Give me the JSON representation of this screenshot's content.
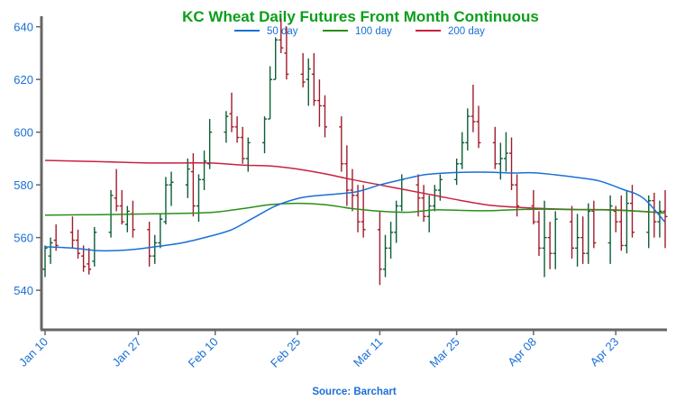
{
  "chart_data": {
    "type": "line",
    "title": "KC Wheat Daily Futures Front Month Continuous",
    "source": "Source: Barchart",
    "ylim": [
      525,
      644
    ],
    "y_ticks": [
      540,
      560,
      580,
      600,
      620,
      640
    ],
    "x_start": "2024-01-10",
    "x_end": "2024-05-02",
    "x_ticks": [
      {
        "date": "2024-01-10",
        "label": "Jan 10"
      },
      {
        "date": "2024-01-27",
        "label": "Jan 27"
      },
      {
        "date": "2024-02-10",
        "label": "Feb 10"
      },
      {
        "date": "2024-02-25",
        "label": "Feb 25"
      },
      {
        "date": "2024-03-11",
        "label": "Mar 11"
      },
      {
        "date": "2024-03-25",
        "label": "Mar 25"
      },
      {
        "date": "2024-04-08",
        "label": "Apr 08"
      },
      {
        "date": "2024-04-23",
        "label": "Apr 23"
      }
    ],
    "legend": {
      "placement": "top"
    },
    "grid": false,
    "colors": {
      "title": "#0a9e1a",
      "axis_text": "#1a6fd6",
      "axis_line": "#666666",
      "up_bar": "#0b5e36",
      "down_bar": "#a01c2a"
    },
    "series": [
      {
        "name": "50 day",
        "color": "#1a6fd6",
        "x": [
          "2024-01-10",
          "2024-01-15",
          "2024-01-20",
          "2024-01-25",
          "2024-01-30",
          "2024-02-04",
          "2024-02-09",
          "2024-02-13",
          "2024-02-17",
          "2024-02-21",
          "2024-02-25",
          "2024-02-28",
          "2024-03-03",
          "2024-03-07",
          "2024-03-11",
          "2024-03-15",
          "2024-03-19",
          "2024-03-23",
          "2024-03-27",
          "2024-03-31",
          "2024-04-04",
          "2024-04-08",
          "2024-04-12",
          "2024-04-16",
          "2024-04-20",
          "2024-04-24",
          "2024-04-28",
          "2024-05-02"
        ],
        "values": [
          556.5,
          556,
          555,
          555.3,
          556.5,
          558,
          560.5,
          563,
          567.5,
          572,
          574.8,
          575.8,
          576.5,
          577.5,
          580,
          582,
          583.8,
          584.5,
          584.8,
          584.8,
          584.5,
          584.6,
          583.8,
          582.8,
          581.5,
          578.5,
          575,
          565.8
        ]
      },
      {
        "name": "100 day",
        "color": "#2a8f1a",
        "x": [
          "2024-01-10",
          "2024-01-20",
          "2024-01-30",
          "2024-02-09",
          "2024-02-15",
          "2024-02-20",
          "2024-02-25",
          "2024-03-01",
          "2024-03-06",
          "2024-03-11",
          "2024-03-16",
          "2024-03-21",
          "2024-03-26",
          "2024-03-31",
          "2024-04-05",
          "2024-04-10",
          "2024-04-15",
          "2024-04-20",
          "2024-04-25",
          "2024-05-02"
        ],
        "values": [
          568.5,
          568.7,
          569,
          569.5,
          571,
          572.5,
          573,
          572.5,
          571,
          570,
          569.6,
          570.5,
          570.3,
          570.2,
          570.6,
          570.8,
          570.6,
          570.5,
          570.2,
          569.4
        ]
      },
      {
        "name": "200 day",
        "color": "#c8223f",
        "x": [
          "2024-01-10",
          "2024-01-20",
          "2024-01-30",
          "2024-02-09",
          "2024-02-15",
          "2024-02-20",
          "2024-02-25",
          "2024-03-01",
          "2024-03-06",
          "2024-03-11",
          "2024-03-16",
          "2024-03-21",
          "2024-03-26",
          "2024-03-31",
          "2024-04-05",
          "2024-04-10",
          "2024-04-15",
          "2024-04-20",
          "2024-04-25",
          "2024-05-02"
        ],
        "values": [
          589.3,
          588.8,
          588.3,
          588.3,
          587.5,
          587.2,
          586,
          584.2,
          582,
          580,
          578,
          576,
          574,
          572.3,
          571.5,
          571,
          570.7,
          570.6,
          570.3,
          569.3
        ]
      }
    ],
    "ohlc_dates": [
      "2024-01-10",
      "2024-01-11",
      "2024-01-12",
      "2024-01-15",
      "2024-01-16",
      "2024-01-17",
      "2024-01-18",
      "2024-01-19",
      "2024-01-22",
      "2024-01-23",
      "2024-01-24",
      "2024-01-25",
      "2024-01-26",
      "2024-01-29",
      "2024-01-30",
      "2024-01-31",
      "2024-02-01",
      "2024-02-02",
      "2024-02-05",
      "2024-02-06",
      "2024-02-07",
      "2024-02-08",
      "2024-02-09",
      "2024-02-12",
      "2024-02-13",
      "2024-02-14",
      "2024-02-15",
      "2024-02-16",
      "2024-02-19",
      "2024-02-20",
      "2024-02-21",
      "2024-02-22",
      "2024-02-23",
      "2024-02-26",
      "2024-02-27",
      "2024-02-28",
      "2024-02-29",
      "2024-03-01",
      "2024-03-04",
      "2024-03-05",
      "2024-03-06",
      "2024-03-07",
      "2024-03-08",
      "2024-03-11",
      "2024-03-12",
      "2024-03-13",
      "2024-03-14",
      "2024-03-15",
      "2024-03-18",
      "2024-03-19",
      "2024-03-20",
      "2024-03-21",
      "2024-03-22",
      "2024-03-25",
      "2024-03-26",
      "2024-03-27",
      "2024-03-28",
      "2024-03-29",
      "2024-04-01",
      "2024-04-02",
      "2024-04-03",
      "2024-04-04",
      "2024-04-05",
      "2024-04-08",
      "2024-04-09",
      "2024-04-10",
      "2024-04-11",
      "2024-04-12",
      "2024-04-15",
      "2024-04-16",
      "2024-04-17",
      "2024-04-18",
      "2024-04-19",
      "2024-04-22",
      "2024-04-23",
      "2024-04-24",
      "2024-04-25",
      "2024-04-26",
      "2024-04-29",
      "2024-04-30",
      "2024-05-01",
      "2024-05-02"
    ],
    "ohlc": [
      [
        548,
        557,
        545,
        556
      ],
      [
        553,
        560,
        550,
        558
      ],
      [
        559,
        565,
        555,
        557
      ],
      [
        562,
        568,
        556,
        559
      ],
      [
        559,
        563,
        552,
        554
      ],
      [
        553,
        557,
        547,
        549
      ],
      [
        550,
        556,
        546,
        548
      ],
      [
        551,
        564,
        549,
        562
      ],
      [
        562,
        578,
        560,
        576
      ],
      [
        575,
        586,
        570,
        572
      ],
      [
        572,
        578,
        565,
        566
      ],
      [
        565,
        572,
        562,
        570
      ],
      [
        569,
        574,
        560,
        563
      ],
      [
        563,
        566,
        549,
        553
      ],
      [
        553,
        561,
        550,
        558
      ],
      [
        558,
        569,
        556,
        567
      ],
      [
        566,
        583,
        565,
        580
      ],
      [
        580,
        585,
        572,
        581
      ],
      [
        580,
        590,
        575,
        586
      ],
      [
        585,
        592,
        568,
        572
      ],
      [
        572,
        584,
        566,
        582
      ],
      [
        582,
        593,
        578,
        589
      ],
      [
        588,
        605,
        586,
        600
      ],
      [
        600,
        608,
        596,
        606
      ],
      [
        607,
        615,
        600,
        602
      ],
      [
        602,
        606,
        596,
        598
      ],
      [
        598,
        602,
        588,
        590
      ],
      [
        590,
        598,
        585,
        596
      ],
      [
        596,
        606,
        592,
        605
      ],
      [
        605,
        625,
        605,
        620
      ],
      [
        620,
        636,
        620,
        635
      ],
      [
        635,
        643,
        630,
        632
      ],
      [
        630,
        640,
        620,
        622
      ],
      [
        622,
        630,
        617,
        619
      ],
      [
        620,
        628,
        610,
        624
      ],
      [
        622,
        630,
        610,
        612
      ],
      [
        612,
        620,
        602,
        610
      ],
      [
        610,
        614,
        598,
        602
      ],
      [
        602,
        606,
        585,
        588
      ],
      [
        588,
        595,
        572,
        578
      ],
      [
        578,
        586,
        570,
        576
      ],
      [
        576,
        580,
        562,
        566
      ],
      [
        566,
        580,
        560,
        563
      ],
      [
        563,
        570,
        542,
        548
      ],
      [
        548,
        561,
        545,
        556
      ],
      [
        556,
        566,
        552,
        562
      ],
      [
        562,
        574,
        558,
        572
      ],
      [
        572,
        584,
        570,
        582
      ],
      [
        580,
        584,
        568,
        575
      ],
      [
        575,
        580,
        566,
        568
      ],
      [
        568,
        576,
        562,
        572
      ],
      [
        572,
        580,
        570,
        578
      ],
      [
        578,
        584,
        574,
        582
      ],
      [
        582,
        590,
        580,
        588
      ],
      [
        588,
        600,
        586,
        596
      ],
      [
        596,
        609,
        593,
        606
      ],
      [
        606,
        618,
        600,
        604
      ],
      [
        604,
        610,
        594,
        596
      ],
      [
        596,
        602,
        586,
        588
      ],
      [
        588,
        596,
        582,
        590
      ],
      [
        590,
        600,
        585,
        592
      ],
      [
        592,
        598,
        578,
        580
      ],
      [
        580,
        584,
        568,
        572
      ],
      [
        572,
        578,
        565,
        566
      ],
      [
        566,
        570,
        553,
        556
      ],
      [
        556,
        574,
        545,
        560
      ],
      [
        560,
        566,
        548,
        554
      ],
      [
        554,
        570,
        548,
        567
      ],
      [
        566,
        572,
        552,
        556
      ],
      [
        556,
        569,
        549,
        560
      ],
      [
        560,
        568,
        550,
        554
      ],
      [
        554,
        573,
        550,
        570
      ],
      [
        570,
        574,
        556,
        558
      ],
      [
        558,
        576,
        550,
        572
      ],
      [
        570,
        572,
        562,
        566
      ],
      [
        566,
        576,
        555,
        557
      ],
      [
        557,
        578,
        554,
        573
      ],
      [
        573,
        580,
        560,
        562
      ],
      [
        562,
        576,
        556,
        574
      ],
      [
        574,
        577,
        560,
        566
      ],
      [
        566,
        574,
        560,
        570
      ],
      [
        570,
        578,
        556,
        568
      ]
    ]
  }
}
